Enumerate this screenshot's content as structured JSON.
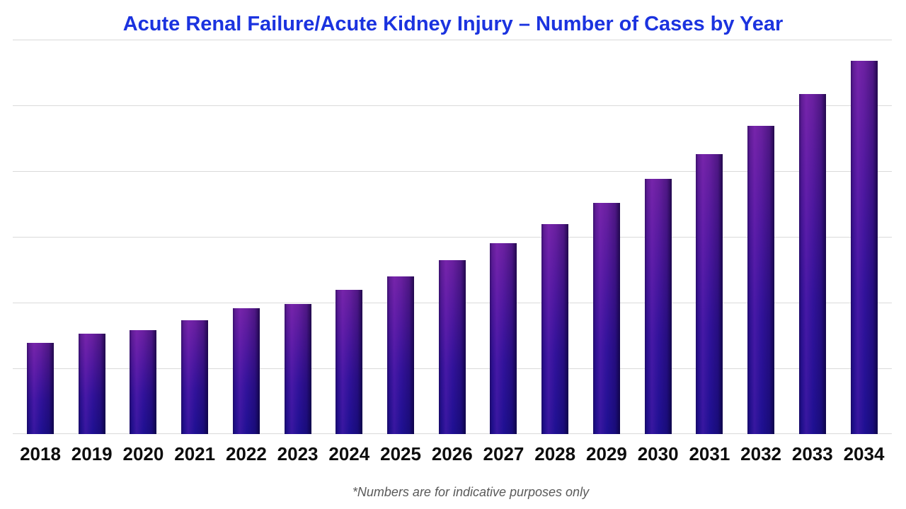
{
  "title": {
    "text": "Acute Renal Failure/Acute Kidney Injury – Number of Cases by Year",
    "color": "#1b33df"
  },
  "footnote": {
    "text": "*Numbers are for indicative purposes only",
    "color": "#595959"
  },
  "chart_data": {
    "type": "bar",
    "title": "Acute Renal Failure/Acute Kidney Injury – Number of Cases by Year",
    "categories": [
      "2018",
      "2019",
      "2020",
      "2021",
      "2022",
      "2023",
      "2024",
      "2025",
      "2026",
      "2027",
      "2028",
      "2029",
      "2030",
      "2031",
      "2032",
      "2033",
      "2034"
    ],
    "values": [
      139,
      153,
      158,
      173,
      191,
      198,
      219,
      240,
      264,
      290,
      319,
      352,
      388,
      426,
      469,
      517,
      568
    ],
    "value_note": "approximate relative units estimated from gridlines; chart displays no y-axis tick labels",
    "xlabel": "",
    "ylabel": "",
    "ylim": [
      0,
      600
    ],
    "gridline_interval": 100,
    "grid": "horizontal-only",
    "legend": "none",
    "bar_gradient_colors": [
      "#6a209f",
      "#50189e",
      "#31129a",
      "#1e1092"
    ],
    "gridline_color": "#dadada",
    "x_tick_color": "#0d0d0d",
    "title_color": "#1b33df"
  }
}
